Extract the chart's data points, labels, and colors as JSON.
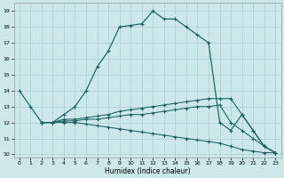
{
  "xlabel": "Humidex (Indice chaleur)",
  "bg_color": "#cce8e8",
  "grid_color": "#aacece",
  "line_color": "#1a6060",
  "xlim": [
    -0.5,
    23.5
  ],
  "ylim": [
    9.8,
    19.5
  ],
  "yticks": [
    10,
    11,
    12,
    13,
    14,
    15,
    16,
    17,
    18,
    19
  ],
  "xticks": [
    0,
    1,
    2,
    3,
    4,
    5,
    6,
    7,
    8,
    9,
    10,
    11,
    12,
    13,
    14,
    15,
    16,
    17,
    18,
    19,
    20,
    21,
    22,
    23
  ],
  "series": [
    {
      "x": [
        0,
        1,
        2,
        3,
        4,
        5,
        6,
        7,
        8,
        9,
        10,
        11,
        12,
        13,
        14,
        15,
        16,
        17,
        18,
        19,
        20,
        21,
        22,
        23
      ],
      "y": [
        14,
        13,
        12,
        12,
        12.5,
        13.0,
        14.0,
        15.5,
        16.5,
        18.0,
        18.1,
        18.2,
        19.0,
        18.5,
        18.5,
        18.0,
        17.5,
        17.0,
        12.0,
        11.5,
        12.5,
        11.5,
        10.5,
        10.1
      ],
      "ls": "-",
      "lw": 0.85
    },
    {
      "x": [
        2,
        3,
        4,
        5,
        6,
        7,
        8,
        9,
        10,
        11,
        12,
        13,
        14,
        15,
        16,
        17,
        18,
        19,
        20,
        21,
        22,
        23
      ],
      "y": [
        12,
        12,
        12.2,
        12.2,
        12.3,
        12.4,
        12.5,
        12.7,
        12.8,
        12.9,
        13.0,
        13.1,
        13.2,
        13.3,
        13.4,
        13.5,
        13.5,
        13.5,
        12.5,
        11.5,
        10.5,
        10.1
      ],
      "ls": "-",
      "lw": 0.75
    },
    {
      "x": [
        2,
        3,
        4,
        5,
        6,
        7,
        8,
        9,
        10,
        11,
        12,
        13,
        14,
        15,
        16,
        17,
        18,
        19,
        20,
        21,
        22,
        23
      ],
      "y": [
        12,
        12,
        12.1,
        12.1,
        12.2,
        12.2,
        12.3,
        12.4,
        12.5,
        12.5,
        12.6,
        12.7,
        12.8,
        12.9,
        13.0,
        13.0,
        13.1,
        12.0,
        11.5,
        11.0,
        10.5,
        10.1
      ],
      "ls": "-",
      "lw": 0.75
    },
    {
      "x": [
        2,
        3,
        4,
        5,
        6,
        7,
        8,
        9,
        10,
        11,
        12,
        13,
        14,
        15,
        16,
        17,
        18,
        19,
        20,
        21,
        22,
        23
      ],
      "y": [
        12,
        12,
        12.0,
        12.0,
        11.9,
        11.8,
        11.7,
        11.6,
        11.5,
        11.4,
        11.3,
        11.2,
        11.1,
        11.0,
        10.9,
        10.8,
        10.7,
        10.5,
        10.3,
        10.2,
        10.1,
        10.1
      ],
      "ls": "-",
      "lw": 0.75
    }
  ]
}
